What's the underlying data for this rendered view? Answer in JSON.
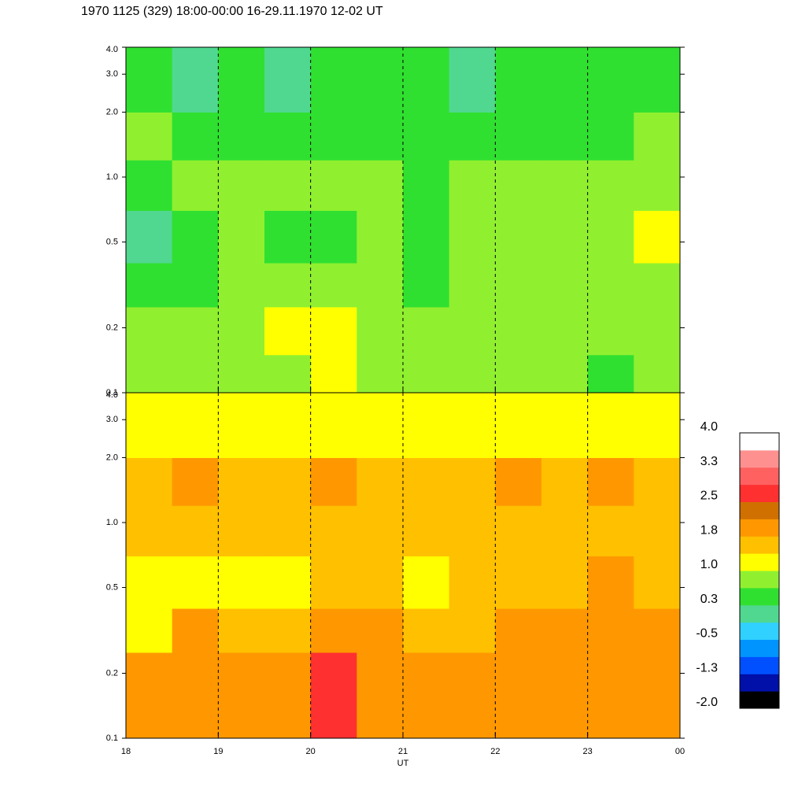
{
  "chart_data": {
    "type": "heatmap",
    "title": "1970 1125 (329) 18:00-00:00 16-29.11.1970  12-02 UT",
    "x_label": "UT",
    "xlim": [
      18,
      24
    ],
    "xticks": [
      18,
      19,
      20,
      21,
      22,
      23,
      {
        "value": 24,
        "label": "00"
      }
    ],
    "ylim": [
      0.1,
      4
    ],
    "yticks": [
      0.1,
      0.2,
      0.5,
      {
        "value": 1,
        "label": "1.0"
      },
      {
        "value": 2,
        "label": "2.0"
      },
      {
        "value": 3,
        "label": "3.0"
      },
      {
        "value": 4,
        "label": "4.0"
      }
    ],
    "log_y": true,
    "grid": "dashed",
    "xbins": [
      18,
      18.5,
      19,
      19.5,
      20,
      20.5,
      21,
      21.5,
      22,
      22.5,
      23,
      23.5,
      24
    ],
    "ybins": [
      0.1,
      0.15,
      0.25,
      0.4,
      0.7,
      1.2,
      2.0,
      4.0
    ],
    "panels": [
      {
        "z": [
          [
            0.8,
            0.8,
            0.8,
            0.8,
            1.1,
            0.8,
            0.8,
            0.7,
            0.8,
            0.8,
            0.5,
            0.7
          ],
          [
            0.8,
            0.8,
            0.8,
            1.1,
            1.1,
            0.8,
            0.8,
            0.8,
            0.8,
            0.9,
            0.8,
            0.8
          ],
          [
            0.3,
            0.6,
            0.8,
            0.9,
            0.7,
            0.8,
            0.6,
            0.7,
            0.8,
            0.9,
            0.7,
            0.8
          ],
          [
            0.1,
            0.4,
            0.9,
            0.5,
            0.6,
            0.9,
            0.4,
            0.7,
            0.9,
            0.7,
            0.8,
            1.1
          ],
          [
            0.6,
            0.7,
            0.8,
            0.7,
            0.8,
            0.7,
            0.6,
            0.7,
            0.8,
            0.7,
            0.7,
            0.8
          ],
          [
            0.7,
            0.5,
            0.6,
            0.5,
            0.6,
            0.5,
            0.6,
            0.5,
            0.6,
            0.5,
            0.6,
            0.7
          ],
          [
            0.4,
            0.2,
            0.4,
            0.2,
            0.4,
            0.3,
            0.4,
            0.2,
            0.4,
            0.3,
            0.4,
            0.3
          ]
        ]
      },
      {
        "z": [
          [
            1.9,
            1.9,
            1.9,
            1.9,
            2.7,
            1.9,
            1.9,
            1.9,
            1.9,
            1.9,
            1.9,
            1.9
          ],
          [
            1.8,
            1.9,
            1.8,
            1.9,
            2.6,
            1.8,
            1.9,
            1.8,
            1.9,
            1.8,
            1.8,
            1.9
          ],
          [
            1.2,
            1.8,
            1.5,
            1.7,
            1.9,
            1.8,
            1.6,
            1.7,
            1.8,
            1.9,
            2.0,
            1.8
          ],
          [
            1.0,
            1.3,
            1.2,
            1.1,
            1.5,
            1.4,
            1.3,
            1.4,
            1.6,
            1.7,
            2.0,
            1.6
          ],
          [
            1.5,
            1.6,
            1.5,
            1.4,
            1.5,
            1.6,
            1.5,
            1.4,
            1.6,
            1.7,
            1.6,
            1.5
          ],
          [
            1.7,
            1.8,
            1.6,
            1.7,
            1.8,
            1.7,
            1.6,
            1.7,
            1.8,
            1.7,
            1.8,
            1.7
          ],
          [
            1.0,
            1.3,
            1.1,
            1.3,
            1.1,
            1.3,
            1.1,
            1.3,
            1.1,
            1.3,
            1.1,
            1.3
          ]
        ]
      }
    ],
    "colorbar": {
      "clim": [
        -2,
        4
      ],
      "ticks": [
        {
          "value": -2,
          "label": "-2.0"
        },
        {
          "value": -1.25,
          "label": "-1.3"
        },
        -0.5,
        {
          "value": 0.25,
          "label": "0.3"
        },
        {
          "value": 1,
          "label": "1.0"
        },
        {
          "value": 1.75,
          "label": "1.8"
        },
        2.5,
        {
          "value": 3.25,
          "label": "3.3"
        },
        {
          "value": 4,
          "label": "4.0"
        }
      ],
      "colors": [
        "#000000",
        "#0010a8",
        "#0050ff",
        "#0094ff",
        "#30d0ff",
        "#50d890",
        "#30e030",
        "#90f030",
        "#ffff00",
        "#ffc000",
        "#ff9800",
        "#d07000",
        "#ff3030",
        "#ff6060",
        "#ff9090",
        "#ffffff"
      ]
    }
  }
}
